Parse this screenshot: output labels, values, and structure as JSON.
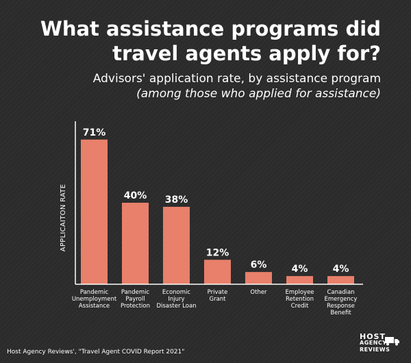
{
  "chart_data": {
    "type": "bar",
    "title": "What assistance programs did travel agents apply for?",
    "subtitle": "Advisors' application rate, by assistance program",
    "subtitle_note": "(among those who applied for assistance)",
    "ylabel": "APPLICAITON RATE",
    "xlabel": "",
    "ylim": [
      0,
      80
    ],
    "grid": false,
    "legend": "none",
    "bar_color": "#e8806b",
    "categories": [
      [
        "Pandemic",
        "Unemployment",
        "Assistance"
      ],
      [
        "Pandemic",
        "Payroll",
        "Protection"
      ],
      [
        "Economic",
        "Injury",
        "Disaster Loan"
      ],
      [
        "Private",
        "Grant"
      ],
      [
        "Other"
      ],
      [
        "Employee",
        "Retention",
        "Credit"
      ],
      [
        "Canadian",
        "Emergency",
        "Response",
        "Benefit"
      ]
    ],
    "values": [
      71,
      40,
      38,
      12,
      6,
      4,
      4
    ],
    "value_labels": [
      "71%",
      "40%",
      "38%",
      "12%",
      "6%",
      "4%",
      "4%"
    ]
  },
  "footer": {
    "source": "Host Agency Reviews', \"Travel Agent COVID Report 2021\""
  },
  "logo": {
    "line1": "HOST",
    "line2": "AGENCY",
    "line3": "REVIEWS",
    "icon": "truck-icon"
  }
}
